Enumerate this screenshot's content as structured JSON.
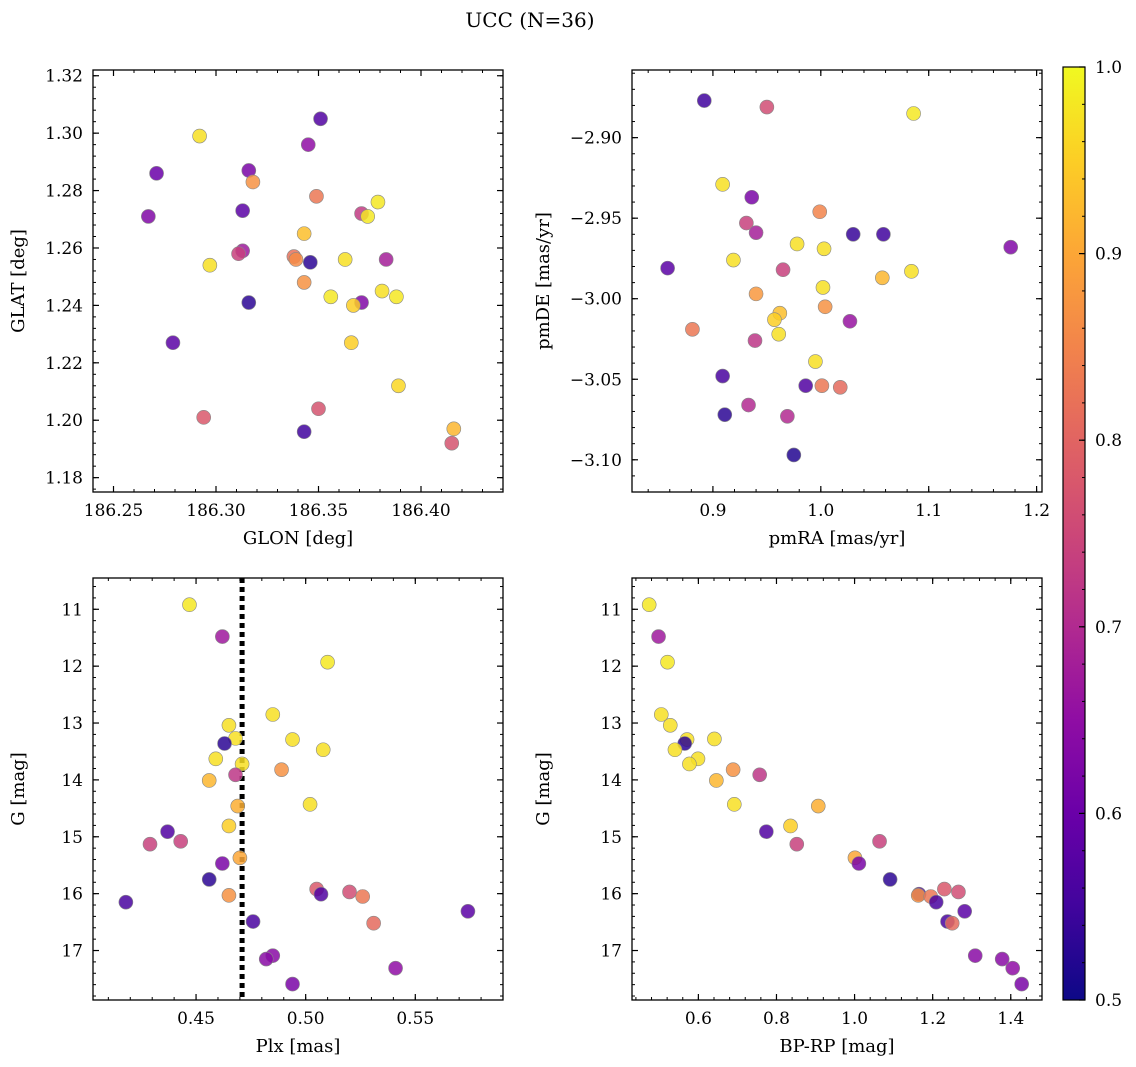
{
  "figure": {
    "title": "UCC (N=36)"
  },
  "colorbar": {
    "colormap": "plasma",
    "range": [
      0.5,
      1.0
    ],
    "tick_labels": [
      "0.5",
      "0.6",
      "0.7",
      "0.8",
      "0.9",
      "1.0"
    ],
    "ticks": [
      0.5,
      0.6,
      0.7,
      0.8,
      0.9,
      1.0
    ]
  },
  "marker_edge_color": "#888888",
  "dashed_line_color": "#000000",
  "chart_data": [
    {
      "type": "scatter",
      "xlabel": "GLON [deg]",
      "ylabel": "GLAT [deg]",
      "xlim": [
        186.24,
        186.44
      ],
      "ylim": [
        1.175,
        1.322
      ],
      "x_ticks": [
        186.25,
        186.3,
        186.35,
        186.4
      ],
      "x_tick_labels": [
        "186.25",
        "186.30",
        "186.35",
        "186.40"
      ],
      "y_ticks": [
        1.18,
        1.2,
        1.22,
        1.24,
        1.26,
        1.28,
        1.3,
        1.32
      ],
      "y_tick_labels": [
        "1.18",
        "1.20",
        "1.22",
        "1.24",
        "1.26",
        "1.28",
        "1.30",
        "1.32"
      ],
      "points": [
        {
          "x": 186.351,
          "y": 1.305,
          "c": 0.57
        },
        {
          "x": 186.292,
          "y": 1.299,
          "c": 0.97
        },
        {
          "x": 186.345,
          "y": 1.296,
          "c": 0.65
        },
        {
          "x": 186.316,
          "y": 1.287,
          "c": 0.62
        },
        {
          "x": 186.271,
          "y": 1.286,
          "c": 0.6
        },
        {
          "x": 186.318,
          "y": 1.283,
          "c": 0.87
        },
        {
          "x": 186.349,
          "y": 1.278,
          "c": 0.83
        },
        {
          "x": 186.379,
          "y": 1.276,
          "c": 0.98
        },
        {
          "x": 186.313,
          "y": 1.273,
          "c": 0.58
        },
        {
          "x": 186.371,
          "y": 1.272,
          "c": 0.73
        },
        {
          "x": 186.267,
          "y": 1.271,
          "c": 0.63
        },
        {
          "x": 186.374,
          "y": 1.271,
          "c": 0.98
        },
        {
          "x": 186.343,
          "y": 1.265,
          "c": 0.93
        },
        {
          "x": 186.313,
          "y": 1.259,
          "c": 0.67
        },
        {
          "x": 186.311,
          "y": 1.258,
          "c": 0.74
        },
        {
          "x": 186.338,
          "y": 1.257,
          "c": 0.82
        },
        {
          "x": 186.339,
          "y": 1.256,
          "c": 0.86
        },
        {
          "x": 186.363,
          "y": 1.256,
          "c": 0.97
        },
        {
          "x": 186.383,
          "y": 1.256,
          "c": 0.68
        },
        {
          "x": 186.346,
          "y": 1.255,
          "c": 0.53
        },
        {
          "x": 186.297,
          "y": 1.254,
          "c": 0.97
        },
        {
          "x": 186.343,
          "y": 1.248,
          "c": 0.87
        },
        {
          "x": 186.381,
          "y": 1.245,
          "c": 0.97
        },
        {
          "x": 186.356,
          "y": 1.243,
          "c": 0.98
        },
        {
          "x": 186.388,
          "y": 1.243,
          "c": 0.98
        },
        {
          "x": 186.371,
          "y": 1.241,
          "c": 0.63
        },
        {
          "x": 186.316,
          "y": 1.241,
          "c": 0.53
        },
        {
          "x": 186.367,
          "y": 1.24,
          "c": 0.95
        },
        {
          "x": 186.279,
          "y": 1.227,
          "c": 0.58
        },
        {
          "x": 186.366,
          "y": 1.227,
          "c": 0.95
        },
        {
          "x": 186.389,
          "y": 1.212,
          "c": 0.96
        },
        {
          "x": 186.35,
          "y": 1.204,
          "c": 0.77
        },
        {
          "x": 186.294,
          "y": 1.201,
          "c": 0.78
        },
        {
          "x": 186.416,
          "y": 1.197,
          "c": 0.92
        },
        {
          "x": 186.343,
          "y": 1.196,
          "c": 0.55
        },
        {
          "x": 186.415,
          "y": 1.192,
          "c": 0.77
        }
      ]
    },
    {
      "type": "scatter",
      "xlabel": "pmRA [mas/yr]",
      "ylabel": "pmDE [mas/yr]",
      "xlim": [
        0.825,
        1.205
      ],
      "ylim": [
        -3.12,
        -2.858
      ],
      "x_ticks": [
        0.9,
        1.0,
        1.1,
        1.2
      ],
      "x_tick_labels": [
        "0.9",
        "1.0",
        "1.1",
        "1.2"
      ],
      "y_ticks": [
        -3.1,
        -3.05,
        -3.0,
        -2.95,
        -2.9
      ],
      "y_tick_labels": [
        "−3.10",
        "−3.05",
        "−3.00",
        "−2.95",
        "−2.90"
      ],
      "points": [
        {
          "x": 0.892,
          "y": -2.877,
          "c": 0.55
        },
        {
          "x": 0.95,
          "y": -2.881,
          "c": 0.76
        },
        {
          "x": 1.086,
          "y": -2.885,
          "c": 0.98
        },
        {
          "x": 0.909,
          "y": -2.929,
          "c": 0.97
        },
        {
          "x": 0.936,
          "y": -2.937,
          "c": 0.62
        },
        {
          "x": 0.999,
          "y": -2.946,
          "c": 0.85
        },
        {
          "x": 0.931,
          "y": -2.953,
          "c": 0.74
        },
        {
          "x": 0.94,
          "y": -2.959,
          "c": 0.68
        },
        {
          "x": 1.03,
          "y": -2.96,
          "c": 0.54
        },
        {
          "x": 1.058,
          "y": -2.96,
          "c": 0.55
        },
        {
          "x": 0.978,
          "y": -2.966,
          "c": 0.97
        },
        {
          "x": 1.176,
          "y": -2.968,
          "c": 0.63
        },
        {
          "x": 1.003,
          "y": -2.969,
          "c": 0.97
        },
        {
          "x": 0.919,
          "y": -2.976,
          "c": 0.97
        },
        {
          "x": 0.858,
          "y": -2.981,
          "c": 0.58
        },
        {
          "x": 0.965,
          "y": -2.982,
          "c": 0.74
        },
        {
          "x": 1.084,
          "y": -2.983,
          "c": 0.97
        },
        {
          "x": 1.057,
          "y": -2.987,
          "c": 0.92
        },
        {
          "x": 1.002,
          "y": -2.993,
          "c": 0.97
        },
        {
          "x": 0.94,
          "y": -2.997,
          "c": 0.88
        },
        {
          "x": 1.004,
          "y": -3.005,
          "c": 0.87
        },
        {
          "x": 0.962,
          "y": -3.009,
          "c": 0.93
        },
        {
          "x": 0.957,
          "y": -3.013,
          "c": 0.95
        },
        {
          "x": 1.027,
          "y": -3.014,
          "c": 0.66
        },
        {
          "x": 0.881,
          "y": -3.019,
          "c": 0.83
        },
        {
          "x": 0.961,
          "y": -3.022,
          "c": 0.97
        },
        {
          "x": 0.939,
          "y": -3.026,
          "c": 0.72
        },
        {
          "x": 0.995,
          "y": -3.039,
          "c": 0.97
        },
        {
          "x": 0.909,
          "y": -3.048,
          "c": 0.56
        },
        {
          "x": 0.986,
          "y": -3.054,
          "c": 0.57
        },
        {
          "x": 1.001,
          "y": -3.054,
          "c": 0.83
        },
        {
          "x": 1.018,
          "y": -3.055,
          "c": 0.81
        },
        {
          "x": 0.933,
          "y": -3.066,
          "c": 0.7
        },
        {
          "x": 0.911,
          "y": -3.072,
          "c": 0.53
        },
        {
          "x": 0.969,
          "y": -3.073,
          "c": 0.7
        },
        {
          "x": 0.975,
          "y": -3.097,
          "c": 0.52
        }
      ]
    },
    {
      "type": "scatter",
      "xlabel": "Plx [mas]",
      "ylabel": "G [mag]",
      "xlim": [
        0.403,
        0.59
      ],
      "ylim": [
        17.87,
        10.45
      ],
      "y_inverted": true,
      "x_ticks": [
        0.45,
        0.5,
        0.55
      ],
      "x_tick_labels": [
        "0.45",
        "0.50",
        "0.55"
      ],
      "y_ticks": [
        11,
        12,
        13,
        14,
        15,
        16,
        17
      ],
      "y_tick_labels": [
        "11",
        "12",
        "13",
        "14",
        "15",
        "16",
        "17"
      ],
      "vline": {
        "x": 0.471,
        "style": "dotted"
      },
      "points": [
        {
          "x": 0.447,
          "y": 10.92,
          "c": 0.98
        },
        {
          "x": 0.462,
          "y": 11.48,
          "c": 0.67
        },
        {
          "x": 0.51,
          "y": 11.93,
          "c": 0.98
        },
        {
          "x": 0.485,
          "y": 12.85,
          "c": 0.97
        },
        {
          "x": 0.465,
          "y": 13.04,
          "c": 0.97
        },
        {
          "x": 0.468,
          "y": 13.27,
          "c": 0.97
        },
        {
          "x": 0.494,
          "y": 13.29,
          "c": 0.97
        },
        {
          "x": 0.463,
          "y": 13.36,
          "c": 0.53
        },
        {
          "x": 0.508,
          "y": 13.47,
          "c": 0.97
        },
        {
          "x": 0.459,
          "y": 13.63,
          "c": 0.97
        },
        {
          "x": 0.471,
          "y": 13.72,
          "c": 0.97
        },
        {
          "x": 0.489,
          "y": 13.82,
          "c": 0.87
        },
        {
          "x": 0.468,
          "y": 13.91,
          "c": 0.72
        },
        {
          "x": 0.456,
          "y": 14.01,
          "c": 0.92
        },
        {
          "x": 0.502,
          "y": 14.43,
          "c": 0.97
        },
        {
          "x": 0.469,
          "y": 14.46,
          "c": 0.91
        },
        {
          "x": 0.465,
          "y": 14.81,
          "c": 0.95
        },
        {
          "x": 0.437,
          "y": 14.91,
          "c": 0.57
        },
        {
          "x": 0.443,
          "y": 15.08,
          "c": 0.74
        },
        {
          "x": 0.429,
          "y": 15.13,
          "c": 0.74
        },
        {
          "x": 0.47,
          "y": 15.37,
          "c": 0.9
        },
        {
          "x": 0.462,
          "y": 15.47,
          "c": 0.62
        },
        {
          "x": 0.456,
          "y": 15.75,
          "c": 0.53
        },
        {
          "x": 0.505,
          "y": 15.92,
          "c": 0.78
        },
        {
          "x": 0.52,
          "y": 15.97,
          "c": 0.76
        },
        {
          "x": 0.507,
          "y": 16.01,
          "c": 0.57
        },
        {
          "x": 0.465,
          "y": 16.03,
          "c": 0.87
        },
        {
          "x": 0.526,
          "y": 16.05,
          "c": 0.83
        },
        {
          "x": 0.418,
          "y": 16.15,
          "c": 0.56
        },
        {
          "x": 0.574,
          "y": 16.31,
          "c": 0.58
        },
        {
          "x": 0.476,
          "y": 16.49,
          "c": 0.56
        },
        {
          "x": 0.531,
          "y": 16.52,
          "c": 0.81
        },
        {
          "x": 0.485,
          "y": 17.09,
          "c": 0.64
        },
        {
          "x": 0.482,
          "y": 17.15,
          "c": 0.64
        },
        {
          "x": 0.541,
          "y": 17.31,
          "c": 0.65
        },
        {
          "x": 0.494,
          "y": 17.59,
          "c": 0.62
        }
      ]
    },
    {
      "type": "scatter",
      "xlabel": "BP-RP [mag]",
      "ylabel": "G [mag]",
      "xlim": [
        0.43,
        1.48
      ],
      "ylim": [
        17.87,
        10.45
      ],
      "y_inverted": true,
      "x_ticks": [
        0.6,
        0.8,
        1.0,
        1.2,
        1.4
      ],
      "x_tick_labels": [
        "0.6",
        "0.8",
        "1.0",
        "1.2",
        "1.4"
      ],
      "y_ticks": [
        11,
        12,
        13,
        14,
        15,
        16,
        17
      ],
      "y_tick_labels": [
        "11",
        "12",
        "13",
        "14",
        "15",
        "16",
        "17"
      ],
      "points": [
        {
          "x": 0.474,
          "y": 10.92,
          "c": 0.98
        },
        {
          "x": 0.498,
          "y": 11.48,
          "c": 0.67
        },
        {
          "x": 0.521,
          "y": 11.93,
          "c": 0.98
        },
        {
          "x": 0.505,
          "y": 12.85,
          "c": 0.97
        },
        {
          "x": 0.528,
          "y": 13.04,
          "c": 0.97
        },
        {
          "x": 0.641,
          "y": 13.28,
          "c": 0.97
        },
        {
          "x": 0.571,
          "y": 13.29,
          "c": 0.97
        },
        {
          "x": 0.565,
          "y": 13.36,
          "c": 0.53
        },
        {
          "x": 0.54,
          "y": 13.47,
          "c": 0.97
        },
        {
          "x": 0.599,
          "y": 13.63,
          "c": 0.97
        },
        {
          "x": 0.577,
          "y": 13.72,
          "c": 0.97
        },
        {
          "x": 0.689,
          "y": 13.82,
          "c": 0.87
        },
        {
          "x": 0.757,
          "y": 13.91,
          "c": 0.72
        },
        {
          "x": 0.646,
          "y": 14.01,
          "c": 0.92
        },
        {
          "x": 0.692,
          "y": 14.43,
          "c": 0.97
        },
        {
          "x": 0.907,
          "y": 14.46,
          "c": 0.91
        },
        {
          "x": 0.836,
          "y": 14.81,
          "c": 0.95
        },
        {
          "x": 0.774,
          "y": 14.91,
          "c": 0.57
        },
        {
          "x": 1.064,
          "y": 15.08,
          "c": 0.74
        },
        {
          "x": 0.852,
          "y": 15.13,
          "c": 0.74
        },
        {
          "x": 1.001,
          "y": 15.37,
          "c": 0.9
        },
        {
          "x": 1.011,
          "y": 15.47,
          "c": 0.62
        },
        {
          "x": 1.091,
          "y": 15.75,
          "c": 0.53
        },
        {
          "x": 1.23,
          "y": 15.92,
          "c": 0.78
        },
        {
          "x": 1.266,
          "y": 15.97,
          "c": 0.76
        },
        {
          "x": 1.165,
          "y": 16.01,
          "c": 0.57
        },
        {
          "x": 1.163,
          "y": 16.03,
          "c": 0.87
        },
        {
          "x": 1.195,
          "y": 16.05,
          "c": 0.83
        },
        {
          "x": 1.209,
          "y": 16.15,
          "c": 0.56
        },
        {
          "x": 1.282,
          "y": 16.31,
          "c": 0.58
        },
        {
          "x": 1.238,
          "y": 16.49,
          "c": 0.56
        },
        {
          "x": 1.25,
          "y": 16.52,
          "c": 0.81
        },
        {
          "x": 1.309,
          "y": 17.09,
          "c": 0.64
        },
        {
          "x": 1.378,
          "y": 17.15,
          "c": 0.64
        },
        {
          "x": 1.405,
          "y": 17.31,
          "c": 0.65
        },
        {
          "x": 1.428,
          "y": 17.59,
          "c": 0.62
        }
      ]
    }
  ]
}
